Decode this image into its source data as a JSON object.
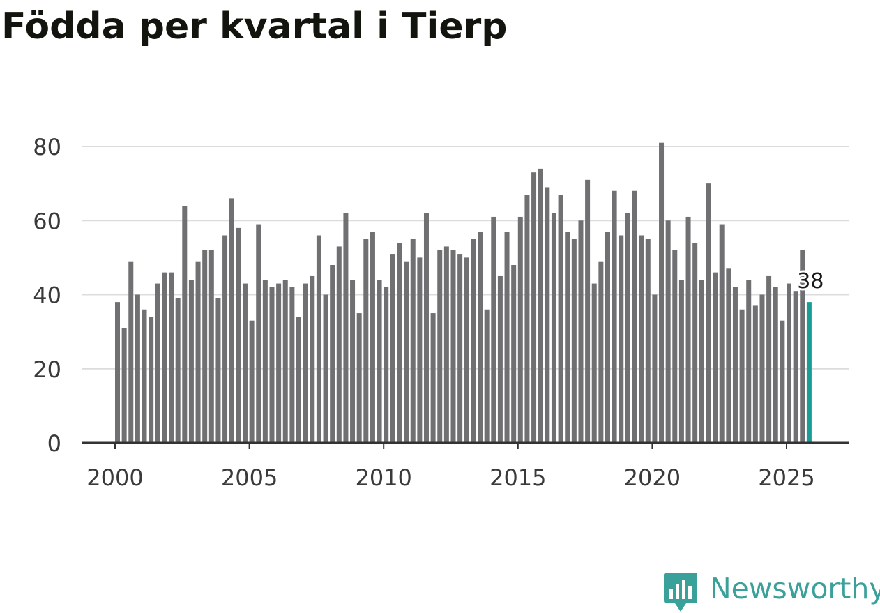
{
  "brand": {
    "name": "Newsworthy",
    "color": "#3aa09a",
    "icon": "newsworthy-chat-bar-icon"
  },
  "chart_data": {
    "type": "bar",
    "title": "Födda per kvartal i Tierp",
    "xlabel": "",
    "ylabel": "",
    "ylim": [
      0,
      85
    ],
    "yticks": [
      0,
      20,
      40,
      60,
      80
    ],
    "xticks": [
      2000,
      2005,
      2010,
      2015,
      2020,
      2025
    ],
    "xlim": [
      1999.0,
      2026.97
    ],
    "grid": true,
    "bar_color": "#707073",
    "highlight_color": "#1a9c96",
    "highlight_label": "38",
    "categories": [
      "2000 Q1",
      "2000 Q2",
      "2000 Q3",
      "2000 Q4",
      "2001 Q1",
      "2001 Q2",
      "2001 Q3",
      "2001 Q4",
      "2002 Q1",
      "2002 Q2",
      "2002 Q3",
      "2002 Q4",
      "2003 Q1",
      "2003 Q2",
      "2003 Q3",
      "2003 Q4",
      "2004 Q1",
      "2004 Q2",
      "2004 Q3",
      "2004 Q4",
      "2005 Q1",
      "2005 Q2",
      "2005 Q3",
      "2005 Q4",
      "2006 Q1",
      "2006 Q2",
      "2006 Q3",
      "2006 Q4",
      "2007 Q1",
      "2007 Q2",
      "2007 Q3",
      "2007 Q4",
      "2008 Q1",
      "2008 Q2",
      "2008 Q3",
      "2008 Q4",
      "2009 Q1",
      "2009 Q2",
      "2009 Q3",
      "2009 Q4",
      "2010 Q1",
      "2010 Q2",
      "2010 Q3",
      "2010 Q4",
      "2011 Q1",
      "2011 Q2",
      "2011 Q3",
      "2011 Q4",
      "2012 Q1",
      "2012 Q2",
      "2012 Q3",
      "2012 Q4",
      "2013 Q1",
      "2013 Q2",
      "2013 Q3",
      "2013 Q4",
      "2014 Q1",
      "2014 Q2",
      "2014 Q3",
      "2014 Q4",
      "2015 Q1",
      "2015 Q2",
      "2015 Q3",
      "2015 Q4",
      "2016 Q1",
      "2016 Q2",
      "2016 Q3",
      "2016 Q4",
      "2017 Q1",
      "2017 Q2",
      "2017 Q3",
      "2017 Q4",
      "2018 Q1",
      "2018 Q2",
      "2018 Q3",
      "2018 Q4",
      "2019 Q1",
      "2019 Q2",
      "2019 Q3",
      "2019 Q4",
      "2020 Q1",
      "2020 Q2",
      "2020 Q3",
      "2020 Q4",
      "2021 Q1",
      "2021 Q2",
      "2021 Q3",
      "2021 Q4",
      "2022 Q1",
      "2022 Q2",
      "2022 Q3",
      "2022 Q4",
      "2023 Q1",
      "2023 Q2",
      "2023 Q3",
      "2023 Q4",
      "2024 Q1",
      "2024 Q2",
      "2024 Q3",
      "2024 Q4",
      "2025 Q1",
      "2025 Q2",
      "2025 Q3",
      "2025 Q4"
    ],
    "values": [
      38,
      31,
      49,
      40,
      36,
      34,
      43,
      46,
      46,
      39,
      64,
      44,
      49,
      52,
      52,
      39,
      56,
      66,
      58,
      43,
      33,
      59,
      44,
      42,
      43,
      44,
      42,
      34,
      43,
      45,
      56,
      40,
      48,
      53,
      62,
      44,
      35,
      55,
      57,
      44,
      42,
      51,
      54,
      49,
      55,
      50,
      62,
      35,
      52,
      53,
      52,
      51,
      50,
      55,
      57,
      36,
      61,
      45,
      57,
      48,
      61,
      67,
      73,
      74,
      69,
      62,
      67,
      57,
      55,
      60,
      71,
      43,
      49,
      57,
      68,
      56,
      62,
      68,
      56,
      55,
      40,
      81,
      60,
      52,
      44,
      61,
      54,
      44,
      70,
      46,
      59,
      47,
      42,
      36,
      44,
      37,
      40,
      45,
      42,
      33,
      43,
      41,
      52,
      38
    ]
  }
}
